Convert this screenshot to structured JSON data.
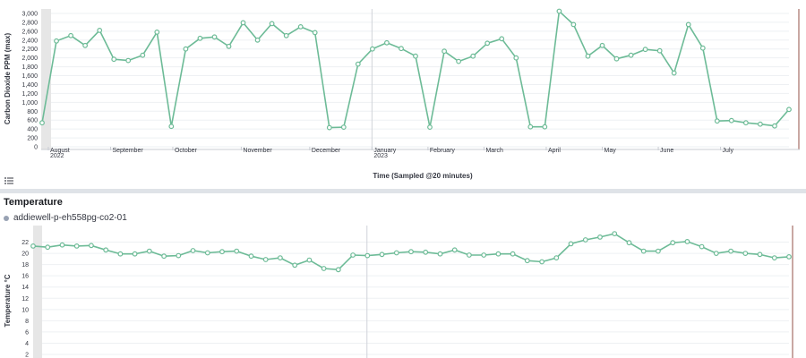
{
  "page": {
    "temperature_title": "Temperature",
    "legend_series": "addiewell-p-eh558pg-co2-01",
    "legend_icon": "list-icon"
  },
  "colors": {
    "line": "#6dbb97",
    "marker_fill": "#ffffff",
    "grid": "#eef0f3",
    "axis_text": "#343741",
    "band": "#e6e6e6",
    "edge": "#c9a8a3"
  },
  "chart_data": [
    {
      "type": "line",
      "ylabel": "Carbon Dioxide PPM (max)",
      "xlabel": "Time (Sampled @20 minutes)",
      "ylim": [
        0,
        3000
      ],
      "yticks": [
        0,
        200,
        400,
        600,
        800,
        1000,
        1200,
        1400,
        1600,
        1800,
        2000,
        2200,
        2400,
        2600,
        2800,
        3000
      ],
      "ytick_labels": [
        "0",
        "200",
        "400",
        "600",
        "800",
        "1,000",
        "1,200",
        "1,400",
        "1,600",
        "1,800",
        "2,000",
        "2,200",
        "2,400",
        "2,600",
        "2,800",
        "3,000"
      ],
      "month_ticks": [
        {
          "label": "August",
          "sub": "2022",
          "t": 0.5
        },
        {
          "label": "September",
          "sub": "",
          "t": 5.5
        },
        {
          "label": "October",
          "sub": "",
          "t": 10.5
        },
        {
          "label": "November",
          "sub": "",
          "t": 16
        },
        {
          "label": "December",
          "sub": "",
          "t": 21.5
        },
        {
          "label": "January",
          "sub": "2023",
          "t": 26.5
        },
        {
          "label": "February",
          "sub": "",
          "t": 31
        },
        {
          "label": "March",
          "sub": "",
          "t": 35.5
        },
        {
          "label": "April",
          "sub": "",
          "t": 40.5
        },
        {
          "label": "May",
          "sub": "",
          "t": 45
        },
        {
          "label": "June",
          "sub": "",
          "t": 49.5
        },
        {
          "label": "July",
          "sub": "",
          "t": 54.5
        }
      ],
      "x_range": [
        0,
        60
      ],
      "year_divider_t": 26.5,
      "series": [
        {
          "values": [
            540,
            2380,
            2500,
            2280,
            2620,
            1970,
            1940,
            2060,
            2580,
            460,
            2200,
            2440,
            2470,
            2260,
            2790,
            2400,
            2770,
            2500,
            2700,
            2570,
            430,
            440,
            1860,
            2200,
            2340,
            2210,
            2040,
            440,
            2150,
            1920,
            2040,
            2330,
            2430,
            2000,
            450,
            450,
            3050,
            2750,
            2040,
            2280,
            1980,
            2060,
            2190,
            2160,
            1660,
            2750,
            2220,
            580,
            590,
            540,
            510,
            470,
            840
          ]
        }
      ]
    },
    {
      "type": "line",
      "ylabel": "Temperature °C",
      "ylim": [
        2,
        24
      ],
      "yticks": [
        2,
        4,
        6,
        8,
        10,
        12,
        14,
        16,
        18,
        20,
        22
      ],
      "x_range": [
        0,
        60
      ],
      "year_divider_t": 26.5,
      "series": [
        {
          "name": "addiewell-p-eh558pg-co2-01",
          "values": [
            21.3,
            21.1,
            21.5,
            21.3,
            21.4,
            20.6,
            19.9,
            19.9,
            20.4,
            19.5,
            19.6,
            20.5,
            20.1,
            20.3,
            20.4,
            19.5,
            18.9,
            19.2,
            17.9,
            18.8,
            17.3,
            17.1,
            19.7,
            19.6,
            19.8,
            20.1,
            20.3,
            20.2,
            19.9,
            20.6,
            19.7,
            19.7,
            19.9,
            19.9,
            18.7,
            18.5,
            19.2,
            21.7,
            22.4,
            22.9,
            23.5,
            21.9,
            20.4,
            20.4,
            21.9,
            22.1,
            21.2,
            20.0,
            20.4,
            20.0,
            19.8,
            19.2,
            19.4
          ]
        }
      ]
    }
  ]
}
